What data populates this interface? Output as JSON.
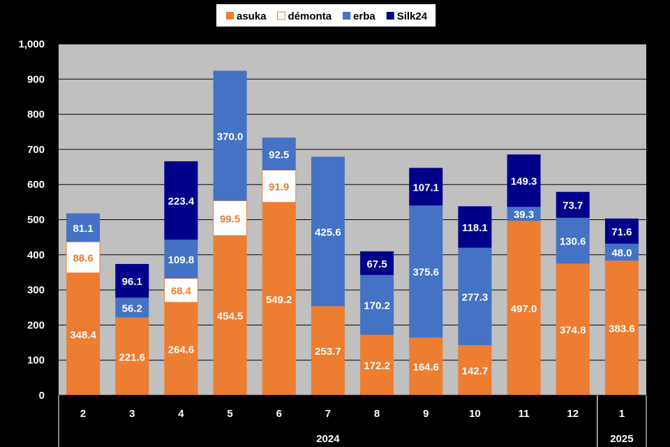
{
  "chart_data": {
    "type": "bar",
    "stacked": true,
    "categories": [
      "2",
      "3",
      "4",
      "5",
      "6",
      "7",
      "8",
      "9",
      "10",
      "11",
      "12",
      "1"
    ],
    "year_groups": [
      {
        "label": "2024",
        "count": 11
      },
      {
        "label": "2025",
        "count": 1
      }
    ],
    "series": [
      {
        "name": "asuka",
        "color": "#ED7D31",
        "values": [
          348.4,
          221.6,
          264.6,
          454.5,
          549.2,
          253.7,
          172.2,
          164.6,
          142.7,
          497.0,
          374.8,
          383.6
        ]
      },
      {
        "name": "démonta",
        "color": "#FFFFFF",
        "values": [
          88.6,
          null,
          68.4,
          99.5,
          91.9,
          null,
          null,
          null,
          null,
          null,
          null,
          null
        ]
      },
      {
        "name": "erba",
        "color": "#4472C4",
        "values": [
          81.1,
          56.2,
          109.8,
          370.0,
          92.5,
          425.6,
          170.2,
          375.6,
          277.3,
          39.3,
          130.6,
          48.0
        ]
      },
      {
        "name": "Silk24",
        "color": "#00008B",
        "values": [
          null,
          96.1,
          223.4,
          null,
          null,
          null,
          67.5,
          107.1,
          118.1,
          149.3,
          73.7,
          71.6
        ]
      }
    ],
    "label_colors": {
      "asuka": "#FFFFFF",
      "démonta": "#ED7D31",
      "erba": "#FFFFFF",
      "Silk24": "#FFFFFF"
    },
    "title": "",
    "xlabel": "",
    "ylabel": "",
    "ylim": [
      0,
      1000
    ],
    "yticks": [
      0,
      100,
      200,
      300,
      400,
      500,
      600,
      700,
      800,
      900,
      1000
    ],
    "ytick_labels": [
      "0",
      "100",
      "200",
      "300",
      "400",
      "500",
      "600",
      "700",
      "800",
      "900",
      "1,000"
    ],
    "grid": true,
    "legend_position": "top"
  }
}
